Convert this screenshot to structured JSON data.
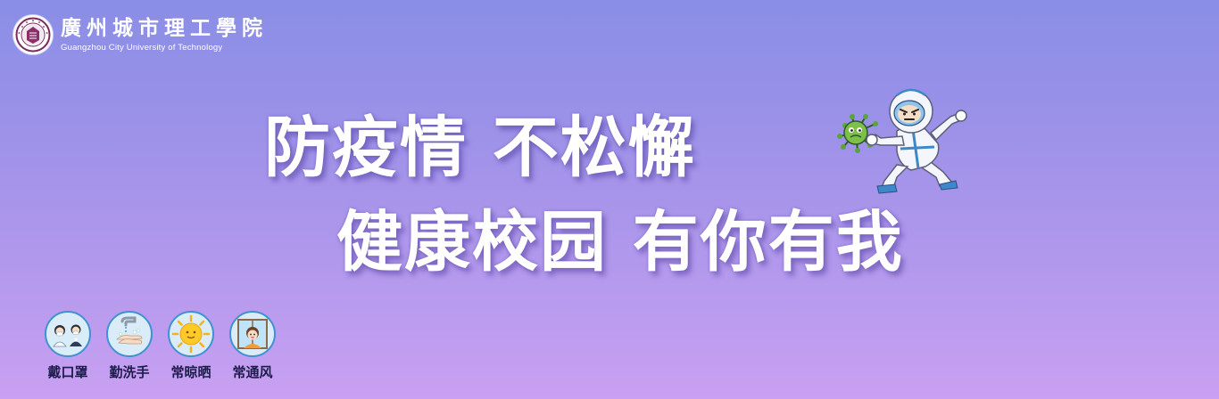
{
  "logo": {
    "name_cn": "廣州城市理工學院",
    "name_en": "Guangzhou City University of Technology",
    "seal_icon": "university-seal-icon"
  },
  "headline": {
    "line1": "防疫情 不松懈",
    "line2": "健康校园 有你有我"
  },
  "mascot": {
    "icon": "hazmat-suit-fighting-virus-illustration"
  },
  "tips": [
    {
      "label": "戴口罩",
      "icon": "face-mask-icon"
    },
    {
      "label": "勤洗手",
      "icon": "hand-washing-icon"
    },
    {
      "label": "常晾晒",
      "icon": "sun-icon"
    },
    {
      "label": "常通风",
      "icon": "open-window-icon"
    }
  ],
  "colors": {
    "background_top": "#8a8ee6",
    "background_bottom": "#c9a0f2",
    "headline_text": "#ffffff",
    "tip_ring": "#3f92d2",
    "tip_label": "#1c1c4a"
  }
}
